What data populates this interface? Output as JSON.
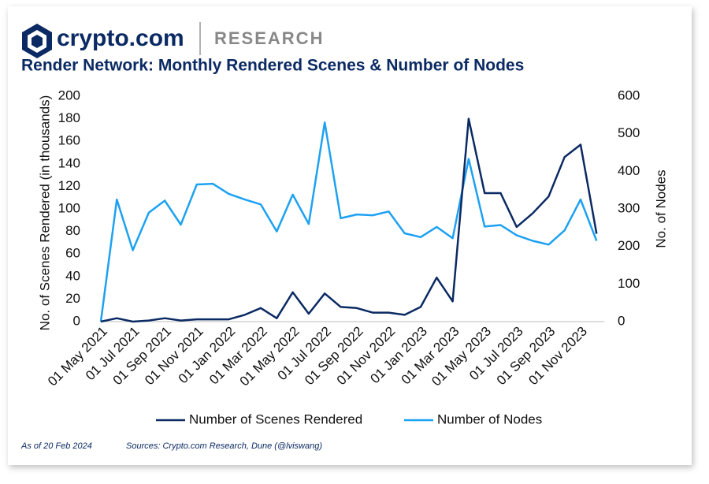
{
  "header": {
    "brand": "crypto.com",
    "section": "RESEARCH"
  },
  "footer": {
    "date_note": "As of 20 Feb 2024",
    "sources": "Sources: Crypto.com Research, Dune (@lviswang)"
  },
  "chart_data": {
    "type": "line",
    "title": "Render Network: Monthly Rendered Scenes & Number of Nodes",
    "y_label": "No. of Scenes Rendered (in thousands)",
    "y2_label": "No. of Nodes",
    "categories": [
      "01 May 2021",
      null,
      "01 Jul 2021",
      null,
      "01 Sep 2021",
      null,
      "01 Nov 2021",
      null,
      "01 Jan 2022",
      null,
      "01 Mar 2022",
      null,
      "01 May 2022",
      null,
      "01 Jul 2022",
      null,
      "01 Sep 2022",
      null,
      "01 Nov 2022",
      null,
      "01 Jan 2023",
      null,
      "01 Mar 2023",
      null,
      "01 May 2023",
      null,
      "01 Jul 2023",
      null,
      "01 Sep 2023",
      null,
      "01 Nov 2023",
      null
    ],
    "ylim": [
      0,
      200
    ],
    "yticks": [
      0,
      20,
      40,
      60,
      80,
      100,
      120,
      140,
      160,
      180,
      200
    ],
    "y2lim": [
      0,
      600
    ],
    "y2ticks": [
      0,
      100,
      200,
      300,
      400,
      500,
      600
    ],
    "legend": "bottom",
    "series": [
      {
        "name": "Number of Scenes Rendered",
        "color": "#0b2a63",
        "values": [
          0,
          3,
          0,
          1,
          3,
          1,
          2,
          2,
          2,
          6,
          12,
          3,
          26,
          7,
          25,
          13,
          12,
          8,
          8,
          6,
          13,
          39,
          18,
          180,
          114,
          114,
          84,
          96,
          111,
          146,
          157,
          78
        ]
      },
      {
        "name": "Number of Nodes",
        "color": "#1da1f2",
        "axis": "y2",
        "values": [
          0,
          325,
          190,
          290,
          322,
          258,
          365,
          367,
          340,
          325,
          312,
          240,
          338,
          260,
          530,
          275,
          285,
          283,
          293,
          235,
          225,
          252,
          222,
          433,
          253,
          257,
          230,
          215,
          205,
          243,
          325,
          215
        ]
      }
    ]
  }
}
